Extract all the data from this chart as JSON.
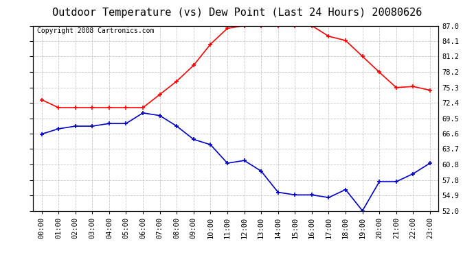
{
  "title": "Outdoor Temperature (vs) Dew Point (Last 24 Hours) 20080626",
  "copyright": "Copyright 2008 Cartronics.com",
  "hours": [
    "00:00",
    "01:00",
    "02:00",
    "03:00",
    "04:00",
    "05:00",
    "06:00",
    "07:00",
    "08:00",
    "09:00",
    "10:00",
    "11:00",
    "12:00",
    "13:00",
    "14:00",
    "15:00",
    "16:00",
    "17:00",
    "18:00",
    "19:00",
    "20:00",
    "21:00",
    "22:00",
    "23:00"
  ],
  "temp": [
    73.0,
    71.5,
    71.5,
    71.5,
    71.5,
    71.5,
    71.5,
    74.0,
    76.5,
    79.5,
    83.5,
    86.5,
    87.0,
    87.0,
    87.0,
    87.0,
    87.0,
    85.0,
    84.2,
    81.2,
    78.2,
    75.3,
    75.5,
    74.8
  ],
  "dew": [
    66.5,
    67.5,
    68.0,
    68.0,
    68.5,
    68.5,
    70.5,
    70.0,
    68.0,
    65.5,
    64.5,
    61.0,
    61.5,
    59.5,
    55.5,
    55.0,
    55.0,
    54.5,
    56.0,
    52.0,
    57.5,
    57.5,
    59.0,
    61.0
  ],
  "temp_color": "#ff0000",
  "dew_color": "#0000cc",
  "bg_color": "#ffffff",
  "grid_color": "#c8c8c8",
  "ylim": [
    52.0,
    87.0
  ],
  "yticks": [
    52.0,
    54.9,
    57.8,
    60.8,
    63.7,
    66.6,
    69.5,
    72.4,
    75.3,
    78.2,
    81.2,
    84.1,
    87.0
  ],
  "title_fontsize": 11,
  "copyright_fontsize": 7,
  "tick_fontsize": 7.5
}
